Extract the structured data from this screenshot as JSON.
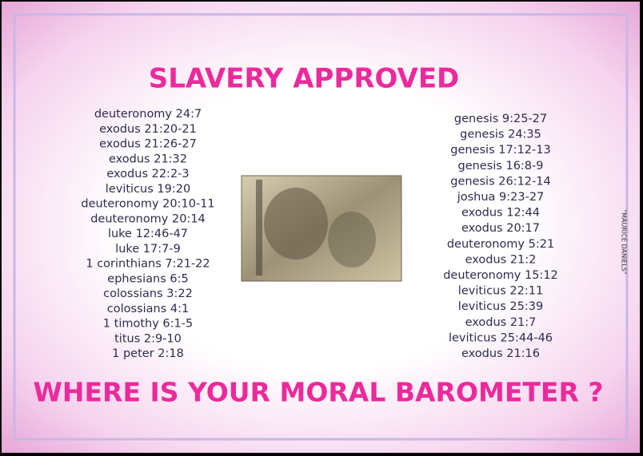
{
  "header": {
    "title": "SLAVERY APPROVED"
  },
  "left_list": [
    "deuteronomy 24:7",
    "exodus 21:20-21",
    "exodus 21:26-27",
    "exodus 21:32",
    "exodus 22:2-3",
    "leviticus 19:20",
    "deuteronomy 20:10-11",
    "deuteronomy 20:14",
    "luke 12:46-47",
    "luke 17:7-9",
    "1 corinthians 7:21-22",
    "ephesians 6:5",
    "colossians 3:22",
    "colossians 4:1",
    "1 timothy 6:1-5",
    "titus 2:9-10",
    "1 peter 2:18"
  ],
  "right_list": [
    "genesis 9:25-27",
    "genesis 24:35",
    "genesis 17:12-13",
    "genesis 16:8-9",
    "genesis 26:12-14",
    "joshua 9:23-27",
    "exodus 12:44",
    "exodus 20:17",
    "deuteronomy 5:21",
    "exodus 21:2",
    "deuteronomy 15:12",
    "leviticus 22:11",
    "leviticus 25:39",
    "exodus 21:7",
    "leviticus 25:44-46",
    "exodus 21:16"
  ],
  "footer": {
    "text": "WHERE IS YOUR MORAL BAROMETER ?"
  },
  "credit": "\"MAURICE DANIELS\""
}
